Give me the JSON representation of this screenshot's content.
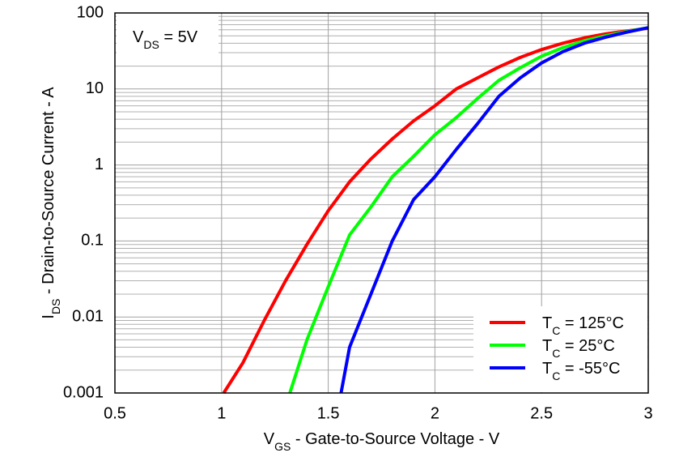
{
  "chart_data": {
    "type": "line",
    "x_label": [
      "V",
      "GS",
      " - Gate-to-Source Voltage - V"
    ],
    "y_label": [
      "I",
      "DS",
      " - Drain-to-Source Current - A"
    ],
    "annotation": [
      "V",
      "DS",
      " = 5V"
    ],
    "log_y": true,
    "grid": true,
    "legend": "lower right",
    "xlim": [
      0.5,
      3
    ],
    "xticks": [
      0.5,
      1,
      1.5,
      2,
      2.5,
      3
    ],
    "ylim": [
      0.001,
      100
    ],
    "yticks": [
      0.001,
      0.01,
      0.1,
      1,
      10,
      100
    ],
    "series": [
      {
        "name": [
          "T",
          "C",
          " = 125°C"
        ],
        "color": "#ff0000",
        "x": [
          1.01,
          1.1,
          1.2,
          1.3,
          1.4,
          1.5,
          1.6,
          1.7,
          1.8,
          1.9,
          2.0,
          2.1,
          2.2,
          2.3,
          2.4,
          2.5,
          2.6,
          2.7,
          2.8,
          2.9,
          3.0
        ],
        "values": [
          0.001,
          0.0025,
          0.009,
          0.03,
          0.09,
          0.25,
          0.6,
          1.2,
          2.2,
          3.8,
          6,
          10,
          14,
          19.5,
          26,
          33,
          40,
          47,
          53,
          58,
          63
        ]
      },
      {
        "name": [
          "T",
          "C",
          " = 25°C"
        ],
        "color": "#00ff00",
        "x": [
          1.32,
          1.4,
          1.5,
          1.6,
          1.7,
          1.8,
          1.9,
          2.0,
          2.1,
          2.2,
          2.3,
          2.4,
          2.5,
          2.6,
          2.7,
          2.8,
          2.9,
          3.0
        ],
        "values": [
          0.001,
          0.005,
          0.025,
          0.12,
          0.28,
          0.7,
          1.3,
          2.5,
          4.2,
          7.5,
          13,
          19,
          27,
          35,
          43,
          50,
          57,
          64
        ]
      },
      {
        "name": [
          "T",
          "C",
          " = -55°C"
        ],
        "color": "#0000ff",
        "x": [
          1.56,
          1.6,
          1.7,
          1.8,
          1.9,
          2.0,
          2.1,
          2.2,
          2.3,
          2.4,
          2.5,
          2.6,
          2.7,
          2.8,
          2.9,
          3.0
        ],
        "values": [
          0.001,
          0.004,
          0.02,
          0.1,
          0.35,
          0.7,
          1.6,
          3.5,
          8,
          14,
          22,
          31,
          40,
          48,
          56,
          64
        ]
      }
    ]
  }
}
